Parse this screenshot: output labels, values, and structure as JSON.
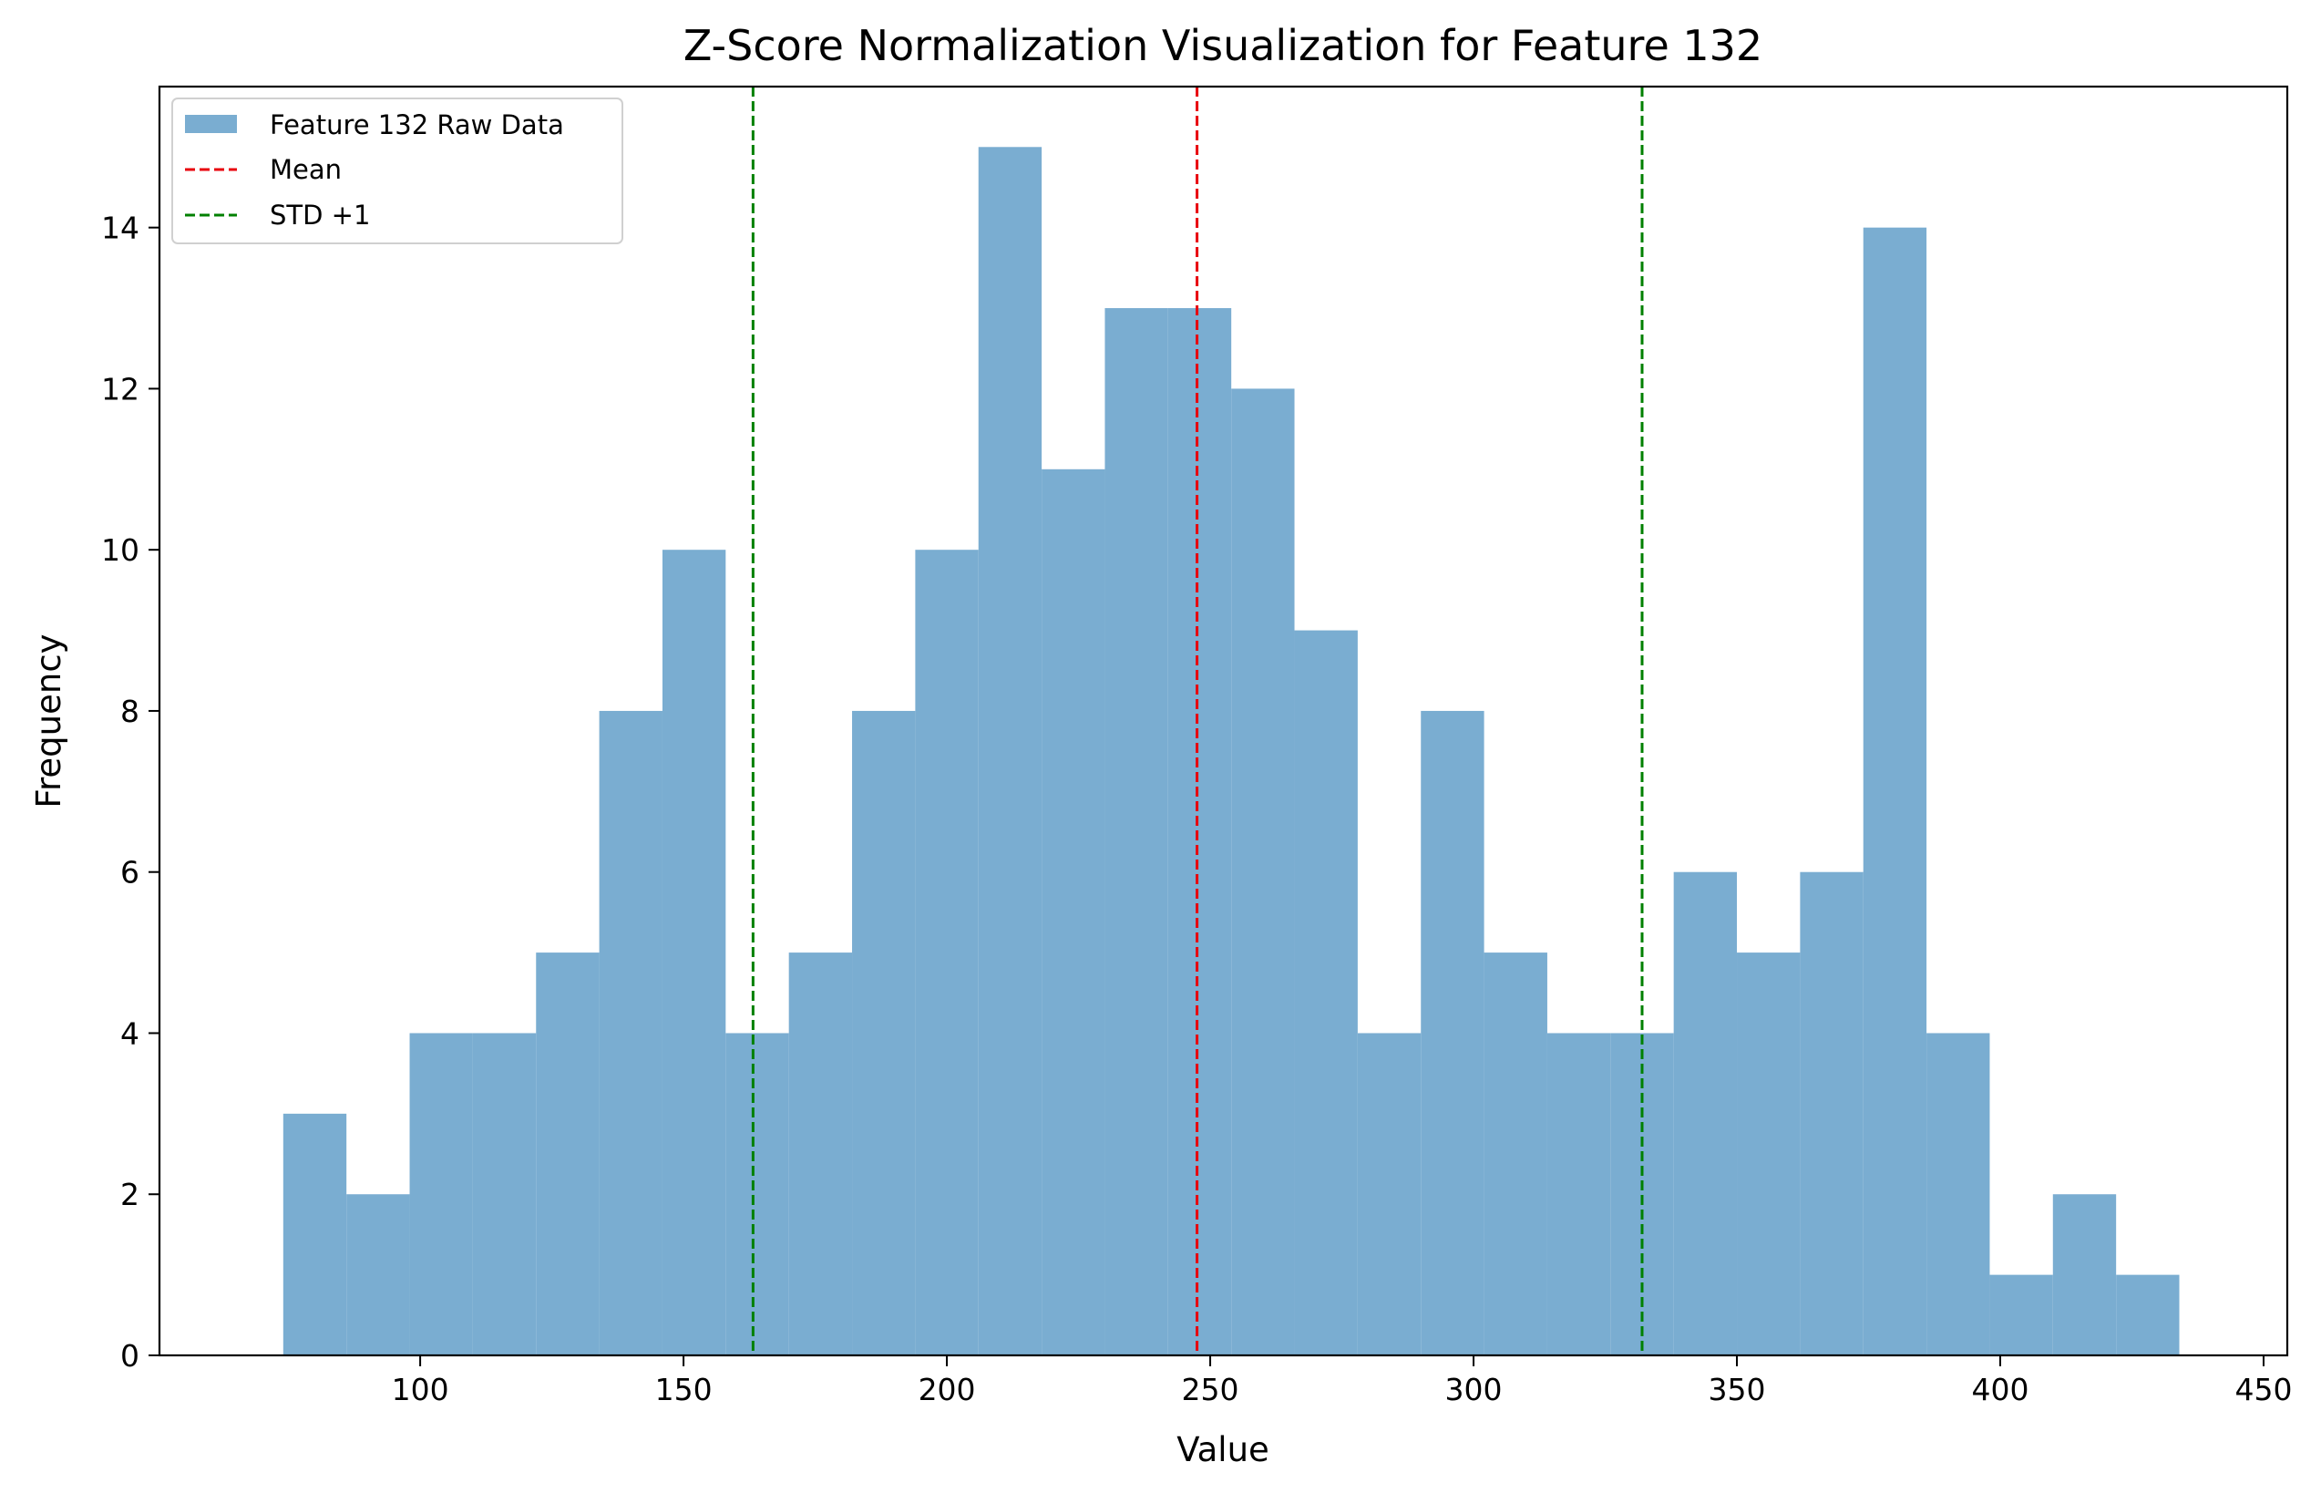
{
  "chart_data": {
    "type": "bar",
    "title": "Z-Score Normalization Visualization for Feature 132",
    "xlabel": "Value",
    "ylabel": "Frequency",
    "xlim": [
      50.5,
      454.5
    ],
    "ylim": [
      0,
      15.75
    ],
    "xticks": [
      100,
      150,
      200,
      250,
      300,
      350,
      400,
      450
    ],
    "yticks": [
      0,
      2,
      4,
      6,
      8,
      10,
      12,
      14
    ],
    "bin_edges": [
      74,
      86,
      98,
      110,
      122,
      134,
      146,
      158,
      170,
      182,
      194,
      206,
      218,
      230,
      242,
      254,
      266,
      278,
      290,
      302,
      314,
      326,
      338,
      350,
      362,
      374,
      386,
      398,
      410,
      422,
      434
    ],
    "series": [
      {
        "name": "Feature 132 Raw Data",
        "color": "#7aadd1",
        "values": [
          3,
          2,
          4,
          4,
          5,
          8,
          10,
          4,
          5,
          8,
          10,
          15,
          11,
          13,
          13,
          12,
          9,
          4,
          8,
          5,
          4,
          4,
          6,
          5,
          6,
          14,
          4,
          1,
          2,
          1
        ]
      }
    ],
    "reference_lines": [
      {
        "name": "Mean",
        "x": 247.5,
        "color": "#e8000b",
        "style": "dashed"
      },
      {
        "name": "STD +1",
        "x": 163.2,
        "color": "#008000",
        "style": "dashed"
      },
      {
        "name": "STD +1",
        "x": 332.0,
        "color": "#008000",
        "style": "dashed"
      }
    ],
    "legend": {
      "position": "top-left",
      "entries": [
        {
          "label": "Feature 132 Raw Data",
          "kind": "patch",
          "color": "#7aadd1"
        },
        {
          "label": "Mean",
          "kind": "dashed-line",
          "color": "#e8000b"
        },
        {
          "label": "STD +1",
          "kind": "dashed-line",
          "color": "#008000"
        }
      ]
    },
    "grid": false
  }
}
